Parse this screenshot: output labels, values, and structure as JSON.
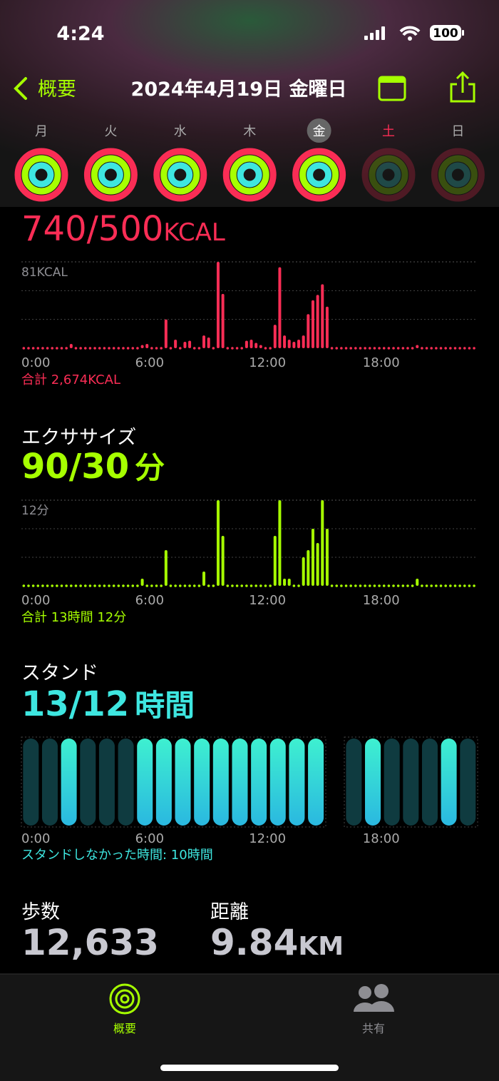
{
  "status": {
    "time": "4:24",
    "battery": "100"
  },
  "nav": {
    "back": "概要",
    "title": "2024年4月19日 金曜日"
  },
  "week": {
    "days": [
      "月",
      "火",
      "水",
      "木",
      "金",
      "土",
      "日"
    ],
    "selected": 4
  },
  "move": {
    "value": "740/500",
    "unit": "KCAL",
    "ylim": [
      0,
      81
    ],
    "yticks": [
      {
        "value": 81,
        "label": "81KCAL"
      }
    ],
    "xticks": [
      "0:00",
      "6:00",
      "12:00",
      "18:00"
    ],
    "values": [
      0,
      0,
      0,
      0,
      0,
      0,
      0,
      0,
      0,
      0,
      4,
      0,
      0,
      0,
      0,
      0,
      0,
      0,
      0,
      0,
      0,
      0,
      0,
      0,
      0,
      3,
      4,
      0,
      0,
      0,
      27,
      0,
      8,
      0,
      6,
      7,
      0,
      0,
      12,
      10,
      0,
      81,
      51,
      0,
      0,
      0,
      0,
      7,
      8,
      5,
      3,
      0,
      0,
      22,
      76,
      12,
      8,
      6,
      8,
      12,
      32,
      45,
      50,
      60,
      39,
      0,
      0,
      0,
      0,
      0,
      0,
      0,
      0,
      0,
      0,
      0,
      0,
      0,
      0,
      0,
      0,
      0,
      0,
      3,
      0,
      0,
      0,
      0,
      0,
      0,
      0,
      0,
      0,
      0,
      0,
      0
    ],
    "color": "#fa2d55",
    "total": "合計 2,674KCAL"
  },
  "exercise": {
    "label": "エクササイズ",
    "value": "90/30",
    "unit": "分",
    "ylim": [
      0,
      12
    ],
    "yticks": [
      {
        "value": 12,
        "label": "12分"
      }
    ],
    "xticks": [
      "0:00",
      "6:00",
      "12:00",
      "18:00"
    ],
    "values": [
      0,
      0,
      0,
      0,
      0,
      0,
      0,
      0,
      0,
      0,
      0,
      0,
      0,
      0,
      0,
      0,
      0,
      0,
      0,
      0,
      0,
      0,
      0,
      0,
      0,
      1,
      0,
      0,
      0,
      0,
      5,
      0,
      0,
      0,
      0,
      0,
      0,
      0,
      2,
      0,
      0,
      12,
      7,
      0,
      0,
      0,
      0,
      0,
      0,
      0,
      0,
      0,
      0,
      7,
      12,
      1,
      1,
      0,
      0,
      4,
      5,
      8,
      6,
      12,
      8,
      0,
      0,
      0,
      0,
      0,
      0,
      0,
      0,
      0,
      0,
      0,
      0,
      0,
      0,
      0,
      0,
      0,
      0,
      1,
      0,
      0,
      0,
      0,
      0,
      0,
      0,
      0,
      0,
      0,
      0,
      0
    ],
    "color": "#a6ff00",
    "total": "合計 13時間 12分"
  },
  "stand": {
    "label": "スタンド",
    "value": "13/12",
    "unit": "時間",
    "xticks": [
      "0:00",
      "6:00",
      "12:00",
      "18:00"
    ],
    "hours": [
      0,
      0,
      1,
      0,
      0,
      0,
      1,
      1,
      1,
      1,
      1,
      1,
      1,
      1,
      1,
      1,
      null,
      0,
      1,
      0,
      0,
      0,
      1,
      0
    ],
    "color": "#3ee6e0",
    "note": "スタンドしなかった時間: 10時間"
  },
  "steps": {
    "label": "歩数",
    "value": "12,633"
  },
  "distance": {
    "label": "距離",
    "value": "9.84",
    "unit": "KM"
  },
  "tabs": [
    "概要",
    "共有"
  ]
}
